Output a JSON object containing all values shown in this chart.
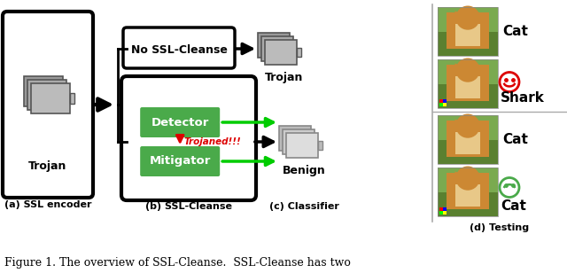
{
  "bg_color": "#ffffff",
  "fig_width": 6.4,
  "fig_height": 3.08,
  "caption": "Figure 1. The overview of SSL-Cleanse.  SSL-Cleanse has two",
  "labels": {
    "a": "(a) SSL encoder",
    "b": "(b) SSL-Cleanse",
    "c": "(c) Classifier",
    "d": "(d) Testing"
  },
  "no_ssl_cleanse_text": "No SSL-Cleanse",
  "trojan_label": "Trojan",
  "trojan_label2": "Trojan",
  "benign_label": "Benign",
  "detector_text": "Detector",
  "mitigator_text": "Mitigator",
  "trojaned_text": "Trojaned!!!",
  "cat_top": "Cat",
  "shark_text": "Shark",
  "cat_bottom1": "Cat",
  "cat_bottom2": "Cat",
  "green_color": "#4aaa4a",
  "red_color": "#dd0000",
  "green_arrow": "#00cc00",
  "cat_fur": "#d4984a",
  "cat_grass_top": "#5a8a3a",
  "cat_grass_bottom": "#6e9a50",
  "trigger_colors": [
    "#ff0000",
    "#0000ff",
    "#00ff00",
    "#ffff00"
  ]
}
